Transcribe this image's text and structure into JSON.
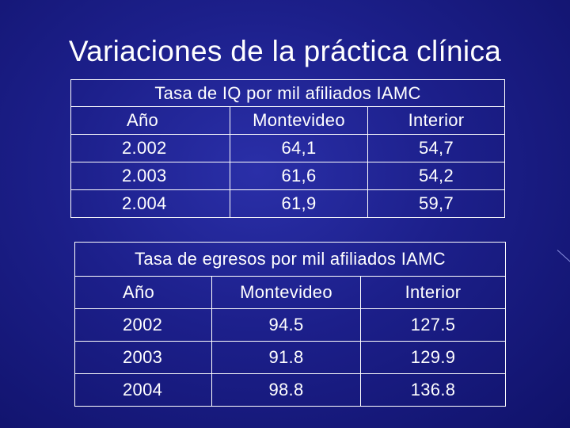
{
  "slide": {
    "title": "Variaciones de la práctica clínica"
  },
  "table_iq": {
    "caption": "Tasa de IQ por mil afiliados IAMC",
    "headers": [
      "Año",
      "Montevideo",
      "Interior"
    ],
    "rows": [
      [
        "2.002",
        "64,1",
        "54,7"
      ],
      [
        "2.003",
        "61,6",
        "54,2"
      ],
      [
        "2.004",
        "61,9",
        "59,7"
      ]
    ]
  },
  "table_egresos": {
    "caption": "Tasa de egresos por mil afiliados IAMC",
    "headers": [
      "Año",
      "Montevideo",
      "Interior"
    ],
    "rows": [
      [
        "2002",
        "94.5",
        "127.5"
      ],
      [
        "2003",
        "91.8",
        "129.9"
      ],
      [
        "2004",
        "98.8",
        "136.8"
      ]
    ]
  }
}
